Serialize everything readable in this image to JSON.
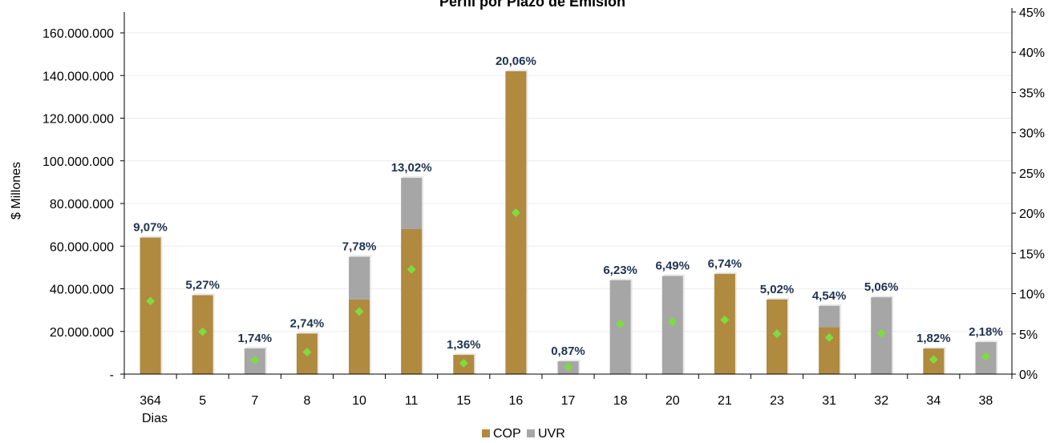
{
  "chart_data": {
    "type": "bar",
    "title": "Perfil por Plazo de Emisión",
    "ylabel": "$ Millones",
    "xlabel_sub": "Dias",
    "categories": [
      "364",
      "5",
      "7",
      "8",
      "10",
      "11",
      "15",
      "16",
      "17",
      "18",
      "20",
      "21",
      "23",
      "31",
      "32",
      "34",
      "38"
    ],
    "y_ticks": [
      "-",
      "20.000.000",
      "40.000.000",
      "60.000.000",
      "80.000.000",
      "100.000.000",
      "120.000.000",
      "140.000.000",
      "160.000.000"
    ],
    "y2_ticks": [
      "0%",
      "5%",
      "10%",
      "15%",
      "20%",
      "25%",
      "30%",
      "35%",
      "40%",
      "45%"
    ],
    "ylim": [
      0,
      170000000
    ],
    "y2lim": [
      0,
      0.45
    ],
    "stacked": true,
    "series": [
      {
        "name": "COP",
        "color": "#b08a3e",
        "values": [
          64000000,
          37000000,
          0,
          19000000,
          35000000,
          68000000,
          9000000,
          142000000,
          0,
          0,
          0,
          47000000,
          35000000,
          22000000,
          0,
          12000000,
          0
        ]
      },
      {
        "name": "UVR",
        "color": "#a6a6a6",
        "values": [
          0,
          0,
          12000000,
          0,
          20000000,
          24000000,
          0,
          0,
          6000000,
          44000000,
          46000000,
          0,
          0,
          10000000,
          36000000,
          0,
          15000000
        ]
      }
    ],
    "percent_series": {
      "color": "#7ddc3f",
      "values": [
        0.0907,
        0.0527,
        0.0174,
        0.0274,
        0.0778,
        0.1302,
        0.0136,
        0.2006,
        0.0087,
        0.0623,
        0.0649,
        0.0674,
        0.0502,
        0.0454,
        0.0506,
        0.0182,
        0.0218
      ],
      "labels": [
        "9,07%",
        "5,27%",
        "1,74%",
        "2,74%",
        "7,78%",
        "13,02%",
        "1,36%",
        "20,06%",
        "0,87%",
        "6,23%",
        "6,49%",
        "6,74%",
        "5,02%",
        "4,54%",
        "5,06%",
        "1,82%",
        "2,18%"
      ]
    },
    "grid": true,
    "legend_position": "bottom"
  }
}
